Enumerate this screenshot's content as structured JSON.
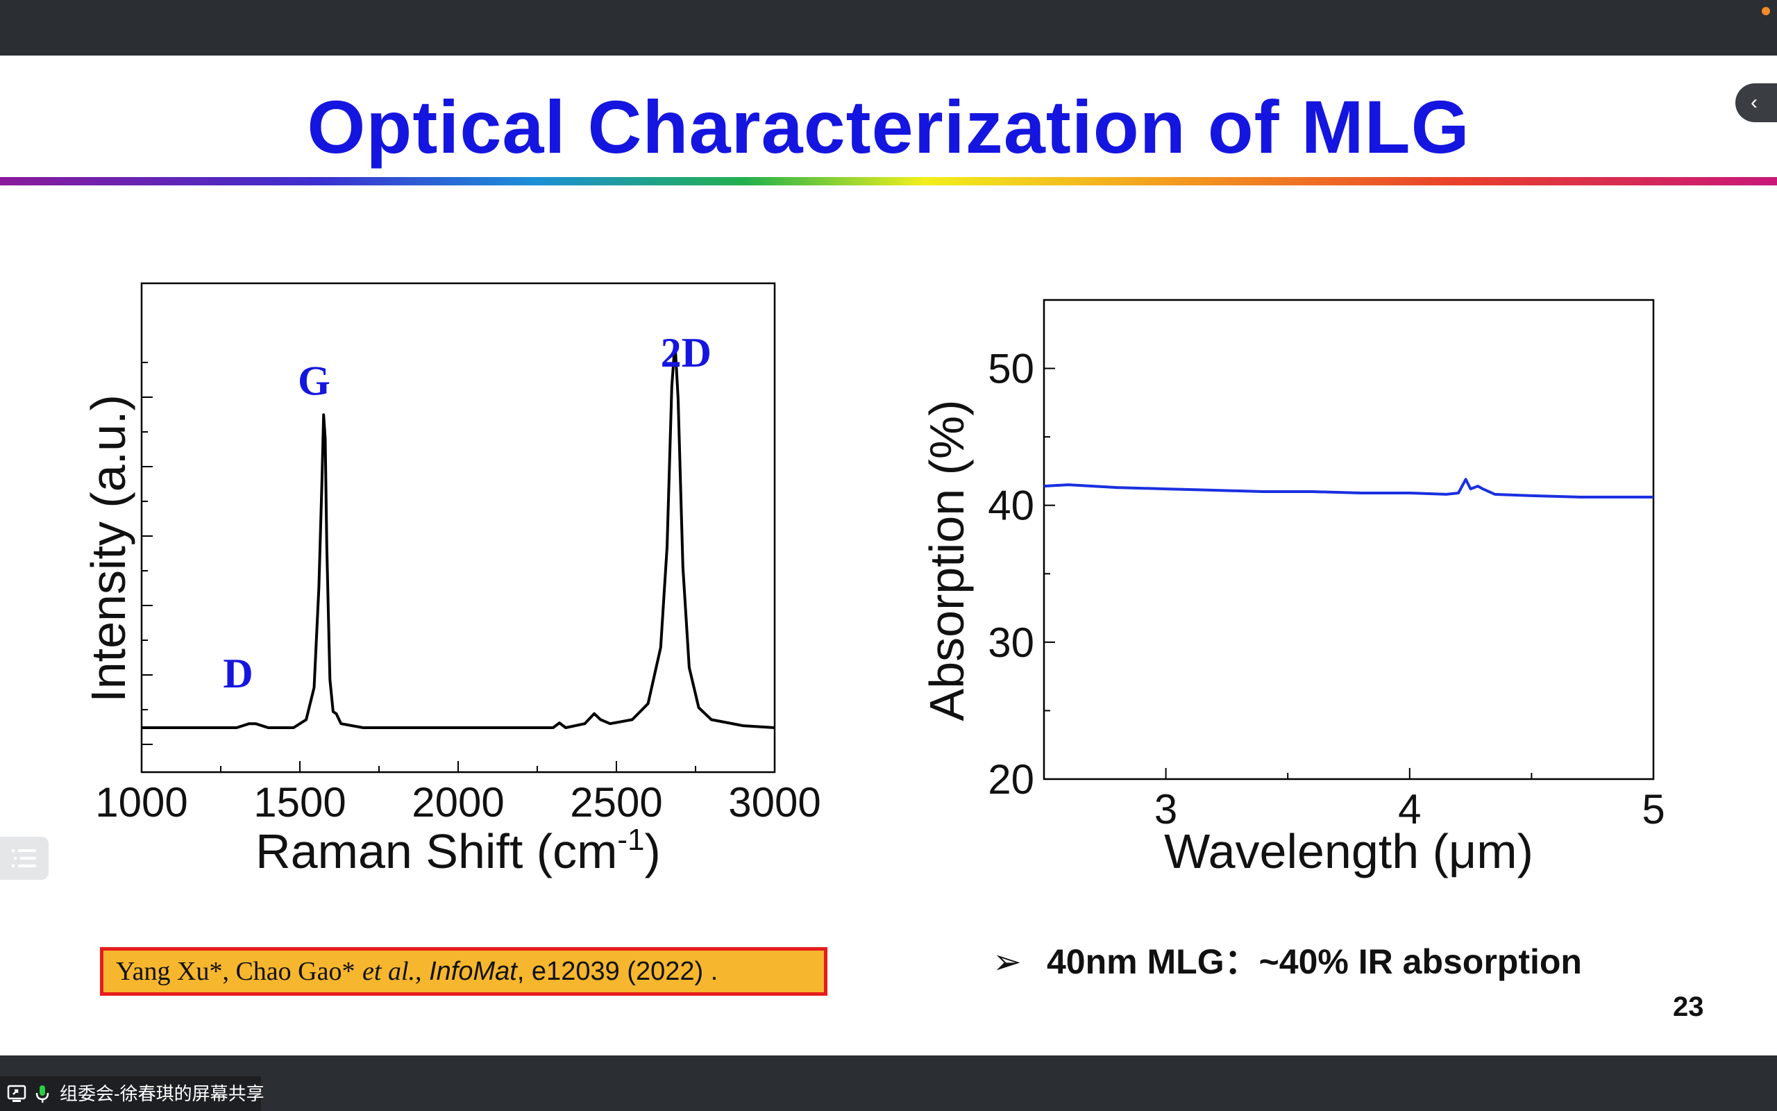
{
  "slide": {
    "title": "Optical Characterization of MLG",
    "page_number": "23",
    "bullet": "40nm MLG：~40% IR absorption",
    "citation": {
      "authors": "Yang Xu*,  Chao Gao*",
      "etal": "et al.,",
      "journal": "InfoMat",
      "details": ", e12039 (2022) ."
    }
  },
  "screen_share": {
    "label": "组委会-徐春琪的屏幕共享"
  },
  "colors": {
    "title": "#1515e0",
    "absorption_line": "#1a2fe0",
    "raman_line": "#000000",
    "citation_fill": "#f6b62e",
    "citation_border": "#e61c1c"
  },
  "chart_data": [
    {
      "type": "line",
      "xlabel": "Raman Shift (cm",
      "xlabel_superscript": "-1",
      "xlabel_suffix": ")",
      "ylabel": "Intensity (a.u.)",
      "xlim": [
        1000,
        3000
      ],
      "ylim": [
        0,
        1.0
      ],
      "x_ticks": [
        "1000",
        "1500",
        "2000",
        "2500",
        "3000"
      ],
      "y_tick_labels": "none",
      "grid": false,
      "series": [
        {
          "x": [
            1000,
            1200,
            1300,
            1340,
            1360,
            1400,
            1480,
            1520,
            1545,
            1560,
            1570,
            1575,
            1580,
            1585,
            1595,
            1605,
            1615,
            1630,
            1700,
            1900,
            2100,
            2300,
            2320,
            2340,
            2400,
            2430,
            2450,
            2480,
            2550,
            2600,
            2640,
            2660,
            2675,
            2685,
            2695,
            2710,
            2730,
            2760,
            2800,
            2900,
            3000
          ],
          "y": [
            0.0,
            0.0,
            0.0,
            0.01,
            0.01,
            0.0,
            0.0,
            0.02,
            0.1,
            0.35,
            0.62,
            0.78,
            0.72,
            0.45,
            0.12,
            0.04,
            0.035,
            0.01,
            0.0,
            0.0,
            0.0,
            0.0,
            0.012,
            0.0,
            0.01,
            0.035,
            0.02,
            0.01,
            0.02,
            0.06,
            0.2,
            0.45,
            0.85,
            0.96,
            0.82,
            0.4,
            0.15,
            0.05,
            0.02,
            0.005,
            0.0
          ]
        }
      ],
      "annotations": [
        {
          "text": "D",
          "x": 1305,
          "y": 0.1
        },
        {
          "text": "G",
          "x": 1545,
          "y": 0.83
        },
        {
          "text": "2D",
          "x": 2720,
          "y": 0.9
        }
      ]
    },
    {
      "type": "line",
      "xlabel": "Wavelength (μm)",
      "ylabel": "Absorption (%)",
      "xlim": [
        2.5,
        5.0
      ],
      "ylim": [
        20,
        55
      ],
      "x_ticks": [
        "3",
        "4",
        "5"
      ],
      "y_ticks": [
        "20",
        "30",
        "40",
        "50"
      ],
      "grid": false,
      "series": [
        {
          "x": [
            2.5,
            2.6,
            2.7,
            2.8,
            3.0,
            3.2,
            3.4,
            3.6,
            3.8,
            4.0,
            4.15,
            4.2,
            4.23,
            4.25,
            4.28,
            4.3,
            4.35,
            4.5,
            4.7,
            5.0
          ],
          "y": [
            41.4,
            41.5,
            41.4,
            41.3,
            41.2,
            41.1,
            41.0,
            41.0,
            40.9,
            40.9,
            40.8,
            40.9,
            41.9,
            41.2,
            41.4,
            41.2,
            40.8,
            40.7,
            40.6,
            40.6
          ]
        }
      ]
    }
  ]
}
